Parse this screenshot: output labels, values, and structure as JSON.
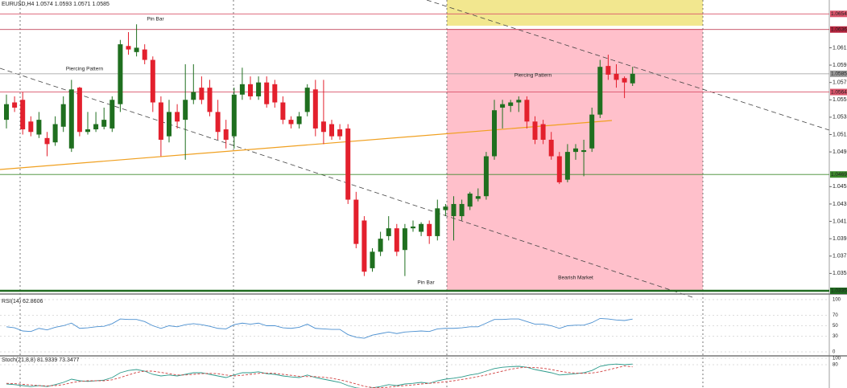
{
  "chart_data": [
    {
      "type": "candlestick",
      "title": "EURUSD,H4 1.0574 1.0593 1.0571 1.0585",
      "candles": [
        [
          1.0532,
          1.0561,
          1.0522,
          1.055
        ],
        [
          1.0552,
          1.0559,
          1.0541,
          1.0546
        ],
        [
          1.0555,
          1.0564,
          1.0515,
          1.0521
        ],
        [
          1.053,
          1.0536,
          1.0513,
          1.0518
        ],
        [
          1.0515,
          1.0541,
          1.0511,
          1.0532
        ],
        [
          1.0511,
          1.0518,
          1.049,
          1.0504
        ],
        [
          1.0506,
          1.0536,
          1.0502,
          1.0527
        ],
        [
          1.0524,
          1.0559,
          1.0518,
          1.055
        ],
        [
          1.0499,
          1.0578,
          1.0495,
          1.0567
        ],
        [
          1.0569,
          1.057,
          1.0513,
          1.0518
        ],
        [
          1.0518,
          1.0541,
          1.0515,
          1.0521
        ],
        [
          1.0521,
          1.0541,
          1.0518,
          1.0527
        ],
        [
          1.0524,
          1.0546,
          1.0521,
          1.0532
        ],
        [
          1.0522,
          1.0559,
          1.0518,
          1.0555
        ],
        [
          1.055,
          1.0624,
          1.0541,
          1.0619
        ],
        [
          1.0617,
          1.0633,
          1.0607,
          1.0613
        ],
        [
          1.061,
          1.0642,
          1.0605,
          1.0615
        ],
        [
          1.0613,
          1.0619,
          1.0596,
          1.0601
        ],
        [
          1.0601,
          1.0605,
          1.0541,
          1.0552
        ],
        [
          1.0552,
          1.0559,
          1.049,
          1.0509
        ],
        [
          1.0513,
          1.0555,
          1.0506,
          1.0541
        ],
        [
          1.0541,
          1.055,
          1.0522,
          1.053
        ],
        [
          1.0532,
          1.0596,
          1.0486,
          1.0555
        ],
        [
          1.0555,
          1.0596,
          1.055,
          1.0564
        ],
        [
          1.0569,
          1.0582,
          1.055,
          1.0555
        ],
        [
          1.0569,
          1.0578,
          1.0536,
          1.0541
        ],
        [
          1.0541,
          1.0555,
          1.0509,
          1.0518
        ],
        [
          1.0521,
          1.0532,
          1.0499,
          1.0509
        ],
        [
          1.0513,
          1.0569,
          1.0499,
          1.0561
        ],
        [
          1.0561,
          1.0592,
          1.0555,
          1.0573
        ],
        [
          1.0573,
          1.0582,
          1.0555,
          1.0559
        ],
        [
          1.0559,
          1.0582,
          1.0555,
          1.0575
        ],
        [
          1.0575,
          1.0582,
          1.0546,
          1.055
        ],
        [
          1.0573,
          1.0578,
          1.0546,
          1.0552
        ],
        [
          1.0552,
          1.0559,
          1.0527,
          1.0532
        ],
        [
          1.0532,
          1.0536,
          1.0522,
          1.0527
        ],
        [
          1.0527,
          1.0541,
          1.0522,
          1.0536
        ],
        [
          1.0541,
          1.0573,
          1.0536,
          1.0569
        ],
        [
          1.0567,
          1.0578,
          1.0513,
          1.0522
        ],
        [
          1.053,
          1.0578,
          1.0504,
          1.0518
        ],
        [
          1.0527,
          1.0532,
          1.0509,
          1.0513
        ],
        [
          1.0521,
          1.0527,
          1.0509,
          1.0513
        ],
        [
          1.0522,
          1.0527,
          1.0435,
          1.044
        ],
        [
          1.044,
          1.0449,
          1.0384,
          1.0389
        ],
        [
          1.0416,
          1.0421,
          1.0352,
          1.0357
        ],
        [
          1.0361,
          1.0384,
          1.0357,
          1.038
        ],
        [
          1.038,
          1.0403,
          1.0375,
          1.0395
        ],
        [
          1.0398,
          1.0421,
          1.0393,
          1.0407
        ],
        [
          1.0407,
          1.0412,
          1.0375,
          1.038
        ],
        [
          1.0382,
          1.0412,
          1.0352,
          1.0407
        ],
        [
          1.0407,
          1.0416,
          1.0403,
          1.0409
        ],
        [
          1.0403,
          1.0414,
          1.0398,
          1.0412
        ],
        [
          1.0412,
          1.0416,
          1.0389,
          1.0398
        ],
        [
          1.0398,
          1.044,
          1.0393,
          1.043
        ],
        [
          1.0428,
          1.0435,
          1.0421,
          1.0432
        ],
        [
          1.0421,
          1.0444,
          1.0393,
          1.0435
        ],
        [
          1.0421,
          1.044,
          1.0416,
          1.0435
        ],
        [
          1.0432,
          1.0449,
          1.0428,
          1.0447
        ],
        [
          1.0441,
          1.0453,
          1.0438,
          1.0444
        ],
        [
          1.0444,
          1.0495,
          1.044,
          1.049
        ],
        [
          1.049,
          1.0555,
          1.0486,
          1.0543
        ],
        [
          1.0546,
          1.0555,
          1.0522,
          1.055
        ],
        [
          1.0548,
          1.0555,
          1.0541,
          1.0552
        ],
        [
          1.0552,
          1.0559,
          1.0541,
          1.0555
        ],
        [
          1.0555,
          1.0559,
          1.0522,
          1.053
        ],
        [
          1.053,
          1.0536,
          1.0504,
          1.0509
        ],
        [
          1.0527,
          1.0532,
          1.0504,
          1.0509
        ],
        [
          1.0509,
          1.0518,
          1.0486,
          1.049
        ],
        [
          1.049,
          1.0495,
          1.0458,
          1.046
        ],
        [
          1.0463,
          1.0504,
          1.046,
          1.0495
        ],
        [
          1.0495,
          1.0504,
          1.0486,
          1.0499
        ],
        [
          1.0495,
          1.0509,
          1.0467,
          1.0497
        ],
        [
          1.0499,
          1.0546,
          1.0495,
          1.0538
        ],
        [
          1.0538,
          1.0601,
          1.0534,
          1.0593
        ],
        [
          1.0594,
          1.0607,
          1.0578,
          1.0584
        ],
        [
          1.0585,
          1.0596,
          1.0569,
          1.0578
        ],
        [
          1.058,
          1.0582,
          1.0557,
          1.0575
        ],
        [
          1.0574,
          1.0593,
          1.0571,
          1.0585
        ]
      ],
      "up_color": "#1f6f1f",
      "down_color": "#e3202d",
      "ylim": [
        1.0335,
        1.067
      ],
      "yticks": [
        1.0355,
        1.0375,
        1.0395,
        1.0415,
        1.0435,
        1.0455,
        1.0495,
        1.0515,
        1.0535,
        1.0555,
        1.0575,
        1.0595,
        1.0615
      ],
      "levels": [
        {
          "value": 1.0654,
          "color": "#d9536a"
        },
        {
          "value": 1.0636,
          "color": "#b8243e"
        },
        {
          "value": 1.0585,
          "color": "#9a9a9a"
        },
        {
          "value": 1.0564,
          "color": "#d9536a"
        },
        {
          "value": 1.0469,
          "color": "#3d8a2c"
        },
        {
          "value": 1.0335,
          "color": "#1f6a1f"
        }
      ],
      "annotations": [
        "Pin Bar",
        "Piercing Pattern",
        "Piercing Pattern",
        "Pin Bar",
        "Bearish Market"
      ]
    },
    {
      "type": "line",
      "title": "RSI(14) 62.8606",
      "series": [
        {
          "color": "#4a8fd0",
          "values": [
            48,
            46,
            40,
            39,
            45,
            42,
            47,
            50,
            55,
            45,
            46,
            48,
            49,
            54,
            63,
            62,
            62,
            58,
            50,
            45,
            50,
            48,
            52,
            54,
            52,
            49,
            45,
            44,
            52,
            55,
            53,
            55,
            50,
            50,
            46,
            45,
            47,
            53,
            45,
            44,
            43,
            43,
            33,
            28,
            26,
            32,
            35,
            38,
            35,
            38,
            39,
            40,
            39,
            44,
            45,
            45,
            46,
            48,
            48,
            55,
            62,
            62,
            63,
            63,
            58,
            53,
            53,
            50,
            45,
            50,
            51,
            51,
            56,
            64,
            63,
            61,
            60,
            62.8606
          ]
        }
      ],
      "ylim": [
        0,
        100
      ],
      "yticks": [
        0,
        30,
        50,
        70,
        100
      ]
    },
    {
      "type": "line",
      "title": "Stoch(21,8,8) 81.9339 73.3477",
      "series": [
        {
          "color": "#2a9a8a",
          "values": [
            20,
            18,
            15,
            12,
            15,
            12,
            18,
            25,
            35,
            30,
            28,
            30,
            32,
            40,
            55,
            62,
            65,
            60,
            50,
            45,
            48,
            45,
            50,
            55,
            55,
            50,
            45,
            40,
            48,
            55,
            55,
            58,
            52,
            50,
            45,
            42,
            40,
            48,
            40,
            35,
            30,
            25,
            15,
            8,
            5,
            8,
            12,
            18,
            15,
            20,
            22,
            25,
            22,
            30,
            35,
            38,
            42,
            48,
            52,
            60,
            68,
            72,
            74,
            75,
            72,
            65,
            60,
            55,
            48,
            50,
            52,
            55,
            62,
            75,
            80,
            82,
            80,
            81.9339
          ]
        },
        {
          "color": "#d04040",
          "dashed": true,
          "values": [
            22,
            21,
            19,
            17,
            15,
            14,
            15,
            18,
            24,
            28,
            30,
            30,
            30,
            33,
            40,
            48,
            56,
            60,
            60,
            56,
            52,
            48,
            48,
            50,
            52,
            53,
            52,
            48,
            45,
            47,
            50,
            53,
            54,
            53,
            50,
            47,
            44,
            43,
            43,
            41,
            38,
            33,
            27,
            20,
            13,
            9,
            8,
            10,
            13,
            15,
            17,
            20,
            22,
            24,
            27,
            30,
            34,
            38,
            43,
            48,
            54,
            60,
            66,
            70,
            72,
            71,
            69,
            65,
            60,
            56,
            54,
            53,
            54,
            58,
            64,
            70,
            76,
            73.3477
          ]
        }
      ],
      "ylim": [
        0,
        100
      ],
      "yticks": [
        80,
        100
      ]
    }
  ]
}
